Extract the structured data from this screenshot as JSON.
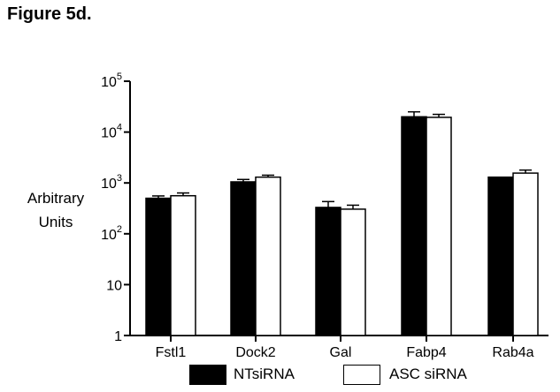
{
  "figure_title": "Figure 5d.",
  "chart_data": {
    "type": "bar",
    "scale": "log",
    "ylabel_lines": [
      "Arbitrary",
      "Units"
    ],
    "ylim": [
      1,
      100000
    ],
    "yticks": [
      {
        "value": 1,
        "base": "1",
        "exp": ""
      },
      {
        "value": 10,
        "base": "10",
        "exp": ""
      },
      {
        "value": 100,
        "base": "10",
        "exp": "2"
      },
      {
        "value": 1000,
        "base": "10",
        "exp": "3"
      },
      {
        "value": 10000,
        "base": "10",
        "exp": "4"
      },
      {
        "value": 100000,
        "base": "10",
        "exp": "5"
      }
    ],
    "categories": [
      "Fstl1",
      "Dock2",
      "Gal",
      "Fabp4",
      "Rab4a"
    ],
    "series": [
      {
        "name": "NTsiRNA",
        "color": "#000000",
        "values": [
          500,
          1050,
          330,
          20000,
          1300
        ],
        "errors": [
          55,
          120,
          100,
          5000,
          0
        ]
      },
      {
        "name": "ASC siRNA",
        "color": "#ffffff",
        "values": [
          560,
          1300,
          305,
          19500,
          1560
        ],
        "errors": [
          75,
          120,
          60,
          2800,
          230
        ]
      }
    ],
    "grid": false,
    "legend_position": "bottom"
  }
}
